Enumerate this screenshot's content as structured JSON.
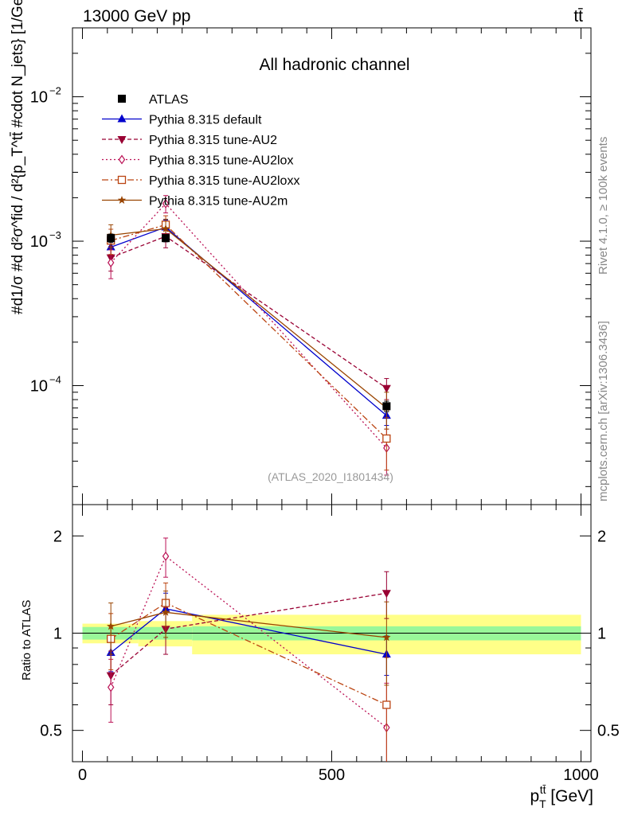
{
  "header": {
    "energy_label": "13000 GeV pp",
    "process_label": "tt̄"
  },
  "side": {
    "rivet_label": "Rivet 4.1.0, ≥ 100k events",
    "mcplots_label": "mcplots.cern.ch [arXiv:1306.3436]"
  },
  "chart_data": {
    "type": "line",
    "title": "All hadronic channel",
    "analysis_tag": "(ATLAS_2020_I1801434)",
    "xlabel": "p_T^{tt̄} [GeV]",
    "ylabel": "#d{#frac{1}{#sigma}#frac{d^{2}#sigma^{fid}}{d{p_T^{tt̄} #cdot N_jets}} [1/GeV]",
    "ylabel_display": "#d1/σ #d d²σ^fid / d²{p_T^tt̄ #cdot N_jets} [1/GeV]",
    "xlim": [
      -20,
      1020
    ],
    "ylim": [
      1.5e-05,
      0.03
    ],
    "yscale": "log",
    "x_ticks": [
      0,
      500,
      1000
    ],
    "x_tick_labels": [
      "0",
      "500",
      "1000"
    ],
    "y_ticks": [
      0.0001,
      0.001,
      0.01
    ],
    "y_tick_labels": [
      "10^-4",
      "10^-3",
      "10^-2"
    ],
    "x": [
      57,
      167,
      610
    ],
    "bin_edges": [
      0,
      112,
      220,
      1000
    ],
    "data": {
      "name": "ATLAS",
      "values": [
        0.00105,
        0.00105,
        7.2e-05
      ],
      "errors": [
        7e-05,
        6e-05,
        6e-06
      ],
      "rel_err_inner": [
        0.045,
        0.045,
        0.05
      ],
      "rel_err_outer": [
        0.07,
        0.09,
        0.14
      ],
      "color": "#000000",
      "marker": "square"
    },
    "series": [
      {
        "name": "Pythia 8.315 default",
        "values": [
          0.00091,
          0.00125,
          6.2e-05
        ],
        "errors": [
          0.00012,
          0.00015,
          9e-06
        ],
        "color": "#0000cc",
        "dash": "",
        "marker": "triangle-up"
      },
      {
        "name": "Pythia 8.315 tune-AU2",
        "values": [
          0.00077,
          0.00108,
          9.6e-05
        ],
        "errors": [
          0.00015,
          0.00018,
          1.6e-05
        ],
        "color": "#990033",
        "dash": "5,3",
        "marker": "triangle-down"
      },
      {
        "name": "Pythia 8.315 tune-AU2lox",
        "values": [
          0.00071,
          0.00182,
          3.7e-05
        ],
        "errors": [
          0.00016,
          0.00025,
          1.3e-05
        ],
        "color": "#bb1155",
        "dash": "2,3",
        "marker": "diamond-open"
      },
      {
        "name": "Pythia 8.315 tune-AU2loxx",
        "values": [
          0.00101,
          0.0013,
          4.3e-05
        ],
        "errors": [
          0.0002,
          0.0002,
          1.7e-05
        ],
        "color": "#bb4411",
        "dash": "8,3,2,3",
        "marker": "square-open"
      },
      {
        "name": "Pythia 8.315 tune-AU2m",
        "values": [
          0.0011,
          0.00122,
          7e-05
        ],
        "errors": [
          0.0002,
          0.0002,
          2e-05
        ],
        "color": "#994400",
        "dash": "",
        "marker": "star"
      }
    ],
    "ratio": {
      "ylabel": "Ratio to ATLAS",
      "ylim": [
        0.4,
        2.5
      ],
      "y_ticks": [
        0.5,
        1,
        2
      ],
      "y_tick_labels": [
        "0.5",
        "1",
        "2"
      ],
      "values": [
        [
          0.87,
          1.19,
          0.86
        ],
        [
          0.74,
          1.03,
          1.33
        ],
        [
          0.68,
          1.73,
          0.51
        ],
        [
          0.96,
          1.24,
          0.6
        ],
        [
          1.05,
          1.16,
          0.97
        ]
      ],
      "errors": [
        [
          0.11,
          0.14,
          0.12
        ],
        [
          0.14,
          0.17,
          0.22
        ],
        [
          0.15,
          0.24,
          0.19
        ],
        [
          0.19,
          0.19,
          0.24
        ],
        [
          0.19,
          0.19,
          0.28
        ]
      ]
    }
  }
}
